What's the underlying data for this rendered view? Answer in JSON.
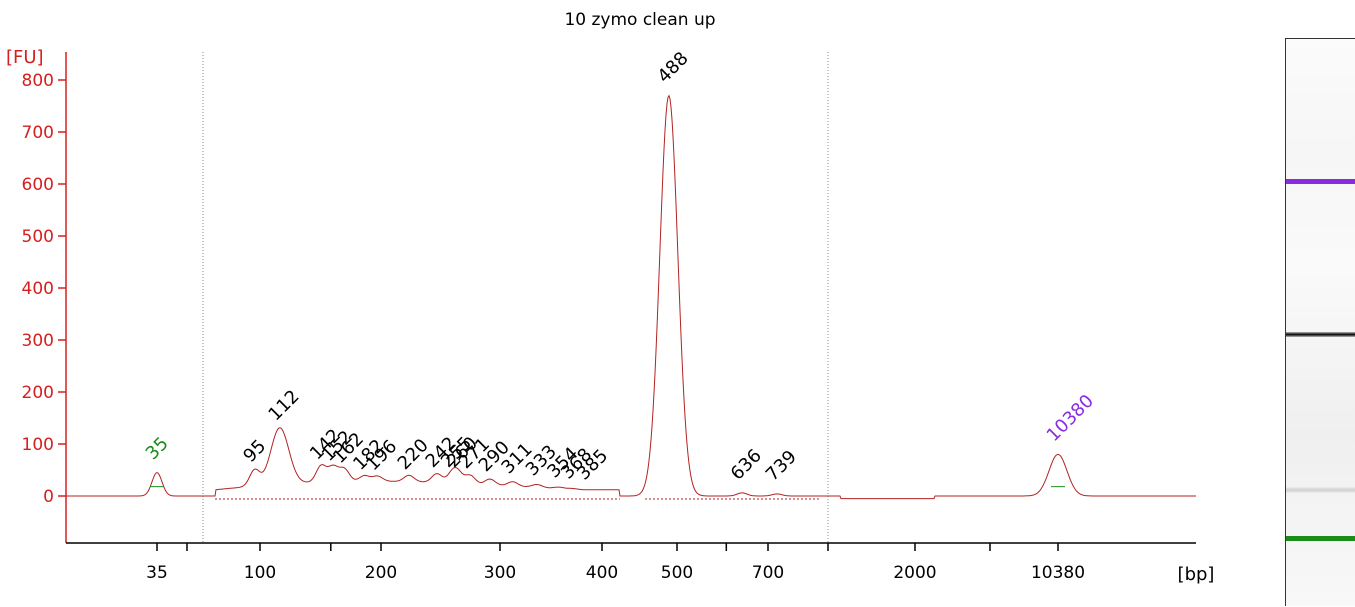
{
  "chart_data": {
    "type": "line",
    "title": "10 zymo clean up",
    "ylabel": "[FU]",
    "xlabel": "[bp]",
    "ylim": [
      -95,
      830
    ],
    "yticks": [
      0,
      100,
      200,
      300,
      400,
      500,
      600,
      700,
      800
    ],
    "xticks": [
      "35",
      "100",
      "200",
      "300",
      "400",
      "500",
      "700",
      "2000",
      "10380"
    ],
    "x_scale": "ladder (non-linear bp)",
    "series": [
      {
        "type": "electropherogram trace",
        "color": "#b22222",
        "peaks": [
          {
            "bp": "35",
            "fu": 45,
            "role": "lower marker",
            "color": "#1a8c1a"
          },
          {
            "bp": "95",
            "fu": 40,
            "color": "#000000"
          },
          {
            "bp": "112",
            "fu": 120,
            "color": "#000000"
          },
          {
            "bp": "142",
            "fu": 45,
            "color": "#000000"
          },
          {
            "bp": "152",
            "fu": 42,
            "color": "#000000"
          },
          {
            "bp": "162",
            "fu": 38,
            "color": "#000000"
          },
          {
            "bp": "182",
            "fu": 25,
            "color": "#000000"
          },
          {
            "bp": "196",
            "fu": 24,
            "color": "#000000"
          },
          {
            "bp": "220",
            "fu": 26,
            "color": "#000000"
          },
          {
            "bp": "242",
            "fu": 30,
            "color": "#000000"
          },
          {
            "bp": "255",
            "fu": 30,
            "color": "#000000"
          },
          {
            "bp": "260",
            "fu": 30,
            "color": "#000000"
          },
          {
            "bp": "271",
            "fu": 28,
            "color": "#000000"
          },
          {
            "bp": "290",
            "fu": 22,
            "color": "#000000"
          },
          {
            "bp": "311",
            "fu": 18,
            "color": "#000000"
          },
          {
            "bp": "333",
            "fu": 14,
            "color": "#000000"
          },
          {
            "bp": "354",
            "fu": 10,
            "color": "#000000"
          },
          {
            "bp": "368",
            "fu": 8,
            "color": "#000000"
          },
          {
            "bp": "385",
            "fu": 6,
            "color": "#000000"
          },
          {
            "bp": "488",
            "fu": 770,
            "color": "#000000"
          },
          {
            "bp": "636",
            "fu": 6,
            "color": "#000000"
          },
          {
            "bp": "739",
            "fu": 4,
            "color": "#000000"
          },
          {
            "bp": "10380",
            "fu": 80,
            "role": "upper marker",
            "color": "#8a2be2"
          }
        ]
      }
    ],
    "grid": false,
    "legend": "none"
  },
  "gel": {
    "bands": [
      {
        "name": "upper-marker-band",
        "color": "#8a2be2"
      },
      {
        "name": "sample-band",
        "color": "#222222"
      },
      {
        "name": "lower-marker-band",
        "color": "#1a8c1a"
      }
    ]
  }
}
